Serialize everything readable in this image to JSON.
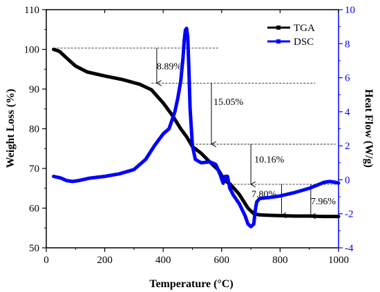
{
  "chart_data": {
    "type": "line",
    "title": "",
    "xlabel": "Temperature (°C)",
    "ylabel_left": "Weight Loss (%)",
    "ylabel_right": "Heat Flow (W/g)",
    "xlim": [
      0,
      1000
    ],
    "ylim_left": [
      50,
      110
    ],
    "ylim_right": [
      -4,
      10
    ],
    "x_ticks": [
      0,
      200,
      400,
      600,
      800,
      1000
    ],
    "y_left_ticks": [
      50,
      60,
      70,
      80,
      90,
      100,
      110
    ],
    "y_right_ticks": [
      -4,
      -2,
      0,
      2,
      4,
      6,
      8,
      10
    ],
    "grid": false,
    "legend_position": "top-right",
    "series": [
      {
        "name": "TGA",
        "axis": "left",
        "color": "#000000",
        "x": [
          25,
          45,
          70,
          100,
          140,
          200,
          260,
          320,
          360,
          400,
          430,
          460,
          480,
          500,
          530,
          560,
          590,
          610,
          630,
          660,
          690,
          710,
          730,
          760,
          800,
          850,
          900,
          950,
          1000
        ],
        "y": [
          100.0,
          99.5,
          97.8,
          95.8,
          94.3,
          93.3,
          92.4,
          91.2,
          89.8,
          86.5,
          83.5,
          80.0,
          78.0,
          75.5,
          73.8,
          71.6,
          69.5,
          67.0,
          66.0,
          63.5,
          60.0,
          58.6,
          58.3,
          58.2,
          58.1,
          58.0,
          58.0,
          57.9,
          57.9
        ]
      },
      {
        "name": "DSC",
        "axis": "right",
        "color": "#0000ff",
        "x": [
          25,
          50,
          70,
          90,
          110,
          150,
          200,
          250,
          300,
          340,
          370,
          400,
          420,
          440,
          450,
          460,
          468,
          472,
          476,
          480,
          484,
          488,
          492,
          500,
          510,
          530,
          560,
          580,
          595,
          605,
          612,
          620,
          628,
          640,
          660,
          680,
          690,
          700,
          710,
          715,
          720,
          730,
          760,
          800,
          850,
          900,
          950,
          970,
          990,
          1000
        ],
        "y": [
          0.2,
          0.1,
          -0.05,
          -0.1,
          -0.05,
          0.1,
          0.2,
          0.35,
          0.6,
          1.2,
          2.0,
          2.7,
          3.0,
          4.0,
          4.8,
          5.8,
          7.2,
          8.2,
          8.8,
          8.9,
          8.4,
          6.5,
          4.2,
          2.0,
          1.2,
          1.0,
          1.05,
          0.9,
          0.3,
          -0.2,
          0.2,
          0.2,
          -0.5,
          -0.9,
          -1.4,
          -2.1,
          -2.6,
          -2.75,
          -2.6,
          -1.8,
          -1.3,
          -1.1,
          -1.05,
          -0.95,
          -0.75,
          -0.5,
          -0.15,
          -0.1,
          -0.15,
          -0.2
        ]
      }
    ],
    "annotations": [
      {
        "text": "8.89%",
        "x_text": 378,
        "y_text": 95.0,
        "arrow_x": 378,
        "from_y": 100.3,
        "to_y": 91.5,
        "ref_line_from": 25,
        "ref_line_to": 590
      },
      {
        "text": "15.05%",
        "x_text": 572,
        "y_text": 86.0,
        "arrow_x": 565,
        "from_y": 91.5,
        "to_y": 76.1,
        "ref_line_from": 360,
        "ref_line_to": 920
      },
      {
        "text": "10.16%",
        "x_text": 712,
        "y_text": 71.5,
        "arrow_x": 700,
        "from_y": 76.1,
        "to_y": 66.0,
        "ref_line_from": 500,
        "ref_line_to": 990
      },
      {
        "text": "7.80%",
        "x_text": 702,
        "y_text": 62.8,
        "arrow_x": 805,
        "from_y": 66.0,
        "to_y": 58.2,
        "ref_line_from": 630,
        "ref_line_to": 990
      },
      {
        "text": "7.96%",
        "x_text": 905,
        "y_text": 61.0,
        "arrow_x": 905,
        "from_y": 66.0,
        "to_y": 58.0,
        "ref_line_from": null,
        "ref_line_to": null
      }
    ]
  }
}
